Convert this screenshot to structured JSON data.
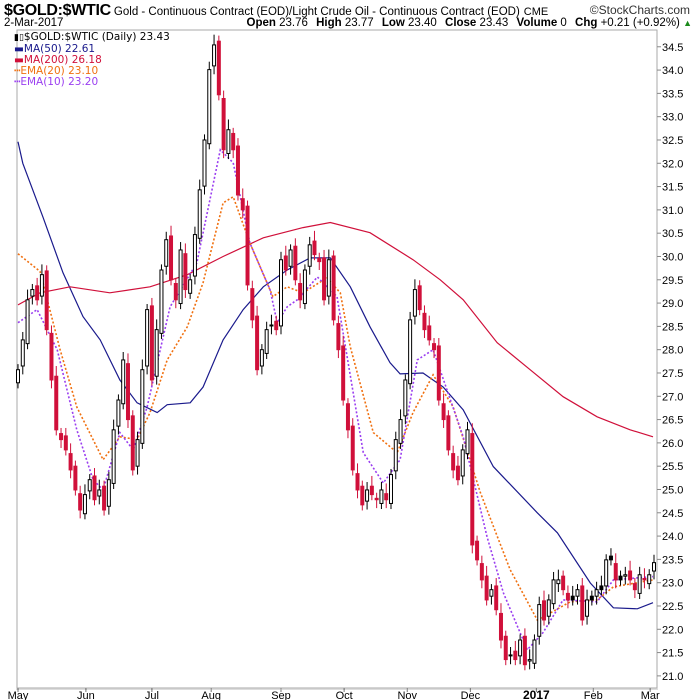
{
  "header": {
    "symbol": "$GOLD:$WTIC",
    "description": "Gold - Continuous Contract (EOD)/Light Crude Oil - Continuous Contract (EOD)",
    "exchange": "CME",
    "brand": "©StockCharts.com",
    "date": "2-Mar-2017",
    "open_label": "Open",
    "open": "23.76",
    "high_label": "High",
    "high": "23.77",
    "low_label": "Low",
    "low": "23.40",
    "close_label": "Close",
    "close": "23.43",
    "volume_label": "Volume",
    "volume": "0",
    "chg_label": "Chg",
    "chg": "+0.21 (+0.92%)",
    "chg_icon": "up-triangle-icon"
  },
  "legend": [
    {
      "label": "$GOLD:$WTIC (Daily) 23.43",
      "color": "#000000",
      "style": "candle"
    },
    {
      "label": "MA(50) 22.61",
      "color": "#1a1a8c",
      "style": "solid"
    },
    {
      "label": "MA(200) 26.18",
      "color": "#d0103a",
      "style": "solid"
    },
    {
      "label": "EMA(20) 23.10",
      "color": "#f07010",
      "style": "dotted"
    },
    {
      "label": "EMA(10) 23.20",
      "color": "#9a3ef0",
      "style": "dotted"
    }
  ],
  "chart_data": {
    "type": "candlestick",
    "ylim": [
      20.74,
      34.86
    ],
    "y_ticks": [
      "21.0",
      "21.5",
      "22.0",
      "22.5",
      "23.0",
      "23.5",
      "24.0",
      "24.5",
      "25.0",
      "25.5",
      "26.0",
      "26.5",
      "27.0",
      "27.5",
      "28.0",
      "28.5",
      "29.0",
      "29.5",
      "30.0",
      "30.5",
      "31.0",
      "31.5",
      "32.0",
      "32.5",
      "33.0",
      "33.5",
      "34.0",
      "34.5"
    ],
    "x_ticks": [
      {
        "label": "May",
        "bar": 0
      },
      {
        "label": "Jun",
        "bar": 14.2
      },
      {
        "label": "Jul",
        "bar": 28
      },
      {
        "label": "Aug",
        "bar": 40.4
      },
      {
        "label": "Sep",
        "bar": 55
      },
      {
        "label": "Oct",
        "bar": 68.2
      },
      {
        "label": "Nov",
        "bar": 81.4
      },
      {
        "label": "Dec",
        "bar": 94.6
      },
      {
        "label": "2017",
        "bar": 108.4,
        "bold": true
      },
      {
        "label": "Feb",
        "bar": 120.3
      },
      {
        "label": "Mar",
        "bar": 132.2
      }
    ],
    "closes": [
      27.57,
      28.21,
      29.07,
      29.29,
      29.07,
      29.61,
      28.43,
      27.35,
      26.28,
      26.07,
      25.85,
      25.42,
      24.99,
      24.56,
      24.89,
      25.21,
      24.78,
      24.99,
      24.56,
      25.21,
      26.28,
      26.92,
      27.78,
      26.5,
      25.42,
      26.07,
      27.57,
      28.86,
      27.35,
      28.43,
      29.71,
      30.36,
      29.5,
      29.07,
      30.14,
      29.29,
      29.5,
      30.47,
      31.43,
      32.5,
      34.01,
      34.54,
      33.47,
      32.29,
      32.72,
      32.29,
      31.32,
      31.0,
      29.39,
      28.64,
      27.57,
      28.0,
      28.43,
      28.53,
      28.43,
      29.93,
      29.71,
      30.14,
      29.5,
      29.07,
      29.71,
      30.25,
      30.04,
      29.89,
      29.07,
      29.93,
      28.64,
      28.0,
      26.92,
      26.28,
      25.42,
      24.99,
      24.67,
      24.99,
      24.89,
      24.78,
      24.99,
      24.78,
      25.32,
      26.07,
      26.5,
      27.35,
      28.64,
      29.29,
      28.86,
      28.43,
      28.21,
      28.0,
      26.92,
      26.5,
      25.85,
      25.42,
      25.21,
      25.85,
      26.28,
      23.81,
      23.49,
      23.06,
      22.63,
      22.85,
      22.42,
      21.77,
      21.35,
      21.45,
      21.35,
      21.77,
      21.24,
      21.35,
      21.77,
      22.53,
      22.2,
      22.63,
      23.06,
      23.06,
      22.85,
      22.63,
      22.63,
      22.85,
      22.2,
      22.63,
      22.63,
      22.85,
      22.85,
      23.49,
      23.49,
      23.06,
      23.06,
      23.17,
      23.06,
      22.85,
      23.17,
      23.06,
      23.17,
      23.43
    ],
    "series": [
      {
        "name": "MA(50)",
        "color": "#1a1a8c",
        "dash": false,
        "points": [
          [
            0,
            32.46
          ],
          [
            1,
            32.0
          ],
          [
            5.2,
            30.85
          ],
          [
            9.4,
            29.65
          ],
          [
            13.6,
            28.71
          ],
          [
            17.2,
            28.21
          ],
          [
            21.3,
            27.35
          ],
          [
            24.9,
            26.86
          ],
          [
            29.1,
            26.65
          ],
          [
            31.2,
            26.82
          ],
          [
            36,
            26.86
          ],
          [
            38.7,
            27.2
          ],
          [
            42.9,
            28.21
          ],
          [
            47.1,
            28.86
          ],
          [
            51.3,
            29.35
          ],
          [
            56.3,
            29.71
          ],
          [
            61.1,
            29.97
          ],
          [
            65.3,
            29.97
          ],
          [
            69.5,
            29.35
          ],
          [
            73.6,
            28.49
          ],
          [
            77.8,
            27.72
          ],
          [
            79.9,
            27.48
          ],
          [
            84.7,
            27.5
          ],
          [
            88.9,
            27.2
          ],
          [
            93.1,
            26.71
          ],
          [
            99.4,
            25.49
          ],
          [
            108.6,
            24.5
          ],
          [
            112.8,
            24.07
          ],
          [
            119.7,
            22.99
          ],
          [
            124.5,
            22.46
          ],
          [
            129.5,
            22.44
          ],
          [
            132.8,
            22.57
          ]
        ]
      },
      {
        "name": "MA(200)",
        "color": "#d0103a",
        "dash": false,
        "points": [
          [
            0,
            28.96
          ],
          [
            4.6,
            29.22
          ],
          [
            10.9,
            29.35
          ],
          [
            19.2,
            29.22
          ],
          [
            27.6,
            29.35
          ],
          [
            35.4,
            29.61
          ],
          [
            42.9,
            30.0
          ],
          [
            51.3,
            30.4
          ],
          [
            59.6,
            30.62
          ],
          [
            65.3,
            30.73
          ],
          [
            73.6,
            30.51
          ],
          [
            82.6,
            29.93
          ],
          [
            88.3,
            29.5
          ],
          [
            93.1,
            29.07
          ],
          [
            100.2,
            28.15
          ],
          [
            107.1,
            27.57
          ],
          [
            114,
            26.99
          ],
          [
            121.1,
            26.56
          ],
          [
            128,
            26.28
          ],
          [
            132.8,
            26.13
          ]
        ]
      },
      {
        "name": "EMA(20)",
        "color": "#f07010",
        "dash": true,
        "points": [
          [
            0,
            30.06
          ],
          [
            4.6,
            29.68
          ],
          [
            8.8,
            28.0
          ],
          [
            12.3,
            26.77
          ],
          [
            17.8,
            25.64
          ],
          [
            21.3,
            26.13
          ],
          [
            24.9,
            26.07
          ],
          [
            27.6,
            26.65
          ],
          [
            31.2,
            27.78
          ],
          [
            35.4,
            28.49
          ],
          [
            38.7,
            29.44
          ],
          [
            42.9,
            31.15
          ],
          [
            45,
            31.28
          ],
          [
            48.5,
            30.29
          ],
          [
            53.3,
            29.14
          ],
          [
            56.3,
            29.35
          ],
          [
            59.6,
            29.22
          ],
          [
            64.6,
            29.54
          ],
          [
            67.4,
            29.22
          ],
          [
            69.5,
            28.06
          ],
          [
            74.3,
            26.22
          ],
          [
            79.3,
            25.79
          ],
          [
            82.6,
            26.65
          ],
          [
            86.8,
            27.46
          ],
          [
            91,
            26.77
          ],
          [
            96.7,
            24.93
          ],
          [
            102.9,
            23.28
          ],
          [
            108.6,
            22.2
          ],
          [
            111.3,
            22.35
          ],
          [
            115.5,
            22.59
          ],
          [
            121.1,
            22.63
          ],
          [
            124.5,
            22.91
          ],
          [
            132.8,
            23.06
          ]
        ]
      },
      {
        "name": "EMA(10)",
        "color": "#9a3ef0",
        "dash": true,
        "points": [
          [
            0,
            28.58
          ],
          [
            4,
            28.86
          ],
          [
            8.2,
            28.0
          ],
          [
            12.3,
            26.28
          ],
          [
            15.7,
            25.21
          ],
          [
            17.8,
            24.99
          ],
          [
            21.3,
            26.22
          ],
          [
            24.1,
            25.85
          ],
          [
            27,
            26.77
          ],
          [
            31.8,
            28.92
          ],
          [
            37.4,
            29.86
          ],
          [
            42.3,
            32.29
          ],
          [
            45,
            32.01
          ],
          [
            48.5,
            30.29
          ],
          [
            52.7,
            29.29
          ],
          [
            54.2,
            28.58
          ],
          [
            56.3,
            28.92
          ],
          [
            58.4,
            29.07
          ],
          [
            62.6,
            29.56
          ],
          [
            66.7,
            29.14
          ],
          [
            72.2,
            25.79
          ],
          [
            76.4,
            25.14
          ],
          [
            79.9,
            25.64
          ],
          [
            83.5,
            27.78
          ],
          [
            86.8,
            28.0
          ],
          [
            93.1,
            26.13
          ],
          [
            98.1,
            23.98
          ],
          [
            101.5,
            22.78
          ],
          [
            106.5,
            21.56
          ],
          [
            109.8,
            21.93
          ],
          [
            114,
            22.63
          ],
          [
            121.1,
            22.59
          ],
          [
            124.5,
            23.06
          ],
          [
            132.8,
            23.13
          ]
        ]
      }
    ],
    "up_color": "#000000",
    "down_color": "#d0103a",
    "grid": false
  }
}
